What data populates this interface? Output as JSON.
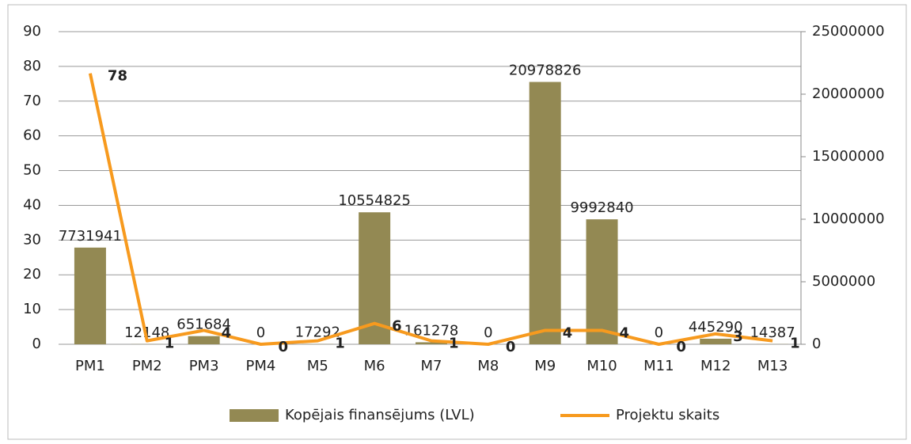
{
  "chart_data": {
    "type": "bar_line",
    "categories": [
      "PM1",
      "PM2",
      "PM3",
      "PM4",
      "M5",
      "M6",
      "M7",
      "M8",
      "M9",
      "M10",
      "M11",
      "M12",
      "M13"
    ],
    "series": [
      {
        "name": "Kopējais finansējums (LVL)",
        "color": "#938953",
        "type": "bar",
        "axis": "y2",
        "values": [
          7731941,
          12148,
          651684,
          0,
          17292,
          10554825,
          161278,
          0,
          20978826,
          9992840,
          0,
          445290,
          14387
        ]
      },
      {
        "name": "Projektu skaits",
        "color": "#f79a1e",
        "type": "line",
        "axis": "y",
        "values": [
          78,
          1,
          4,
          0,
          1,
          6,
          1,
          0,
          4,
          4,
          0,
          3,
          1
        ]
      }
    ],
    "ylim": [
      0,
      90
    ],
    "yticks": [
      0,
      10,
      20,
      30,
      40,
      50,
      60,
      70,
      80,
      90
    ],
    "y2lim": [
      0,
      25000000
    ],
    "y2ticks": [
      0,
      5000000,
      10000000,
      15000000,
      20000000,
      25000000
    ],
    "grid": true,
    "legend": "bottom"
  }
}
